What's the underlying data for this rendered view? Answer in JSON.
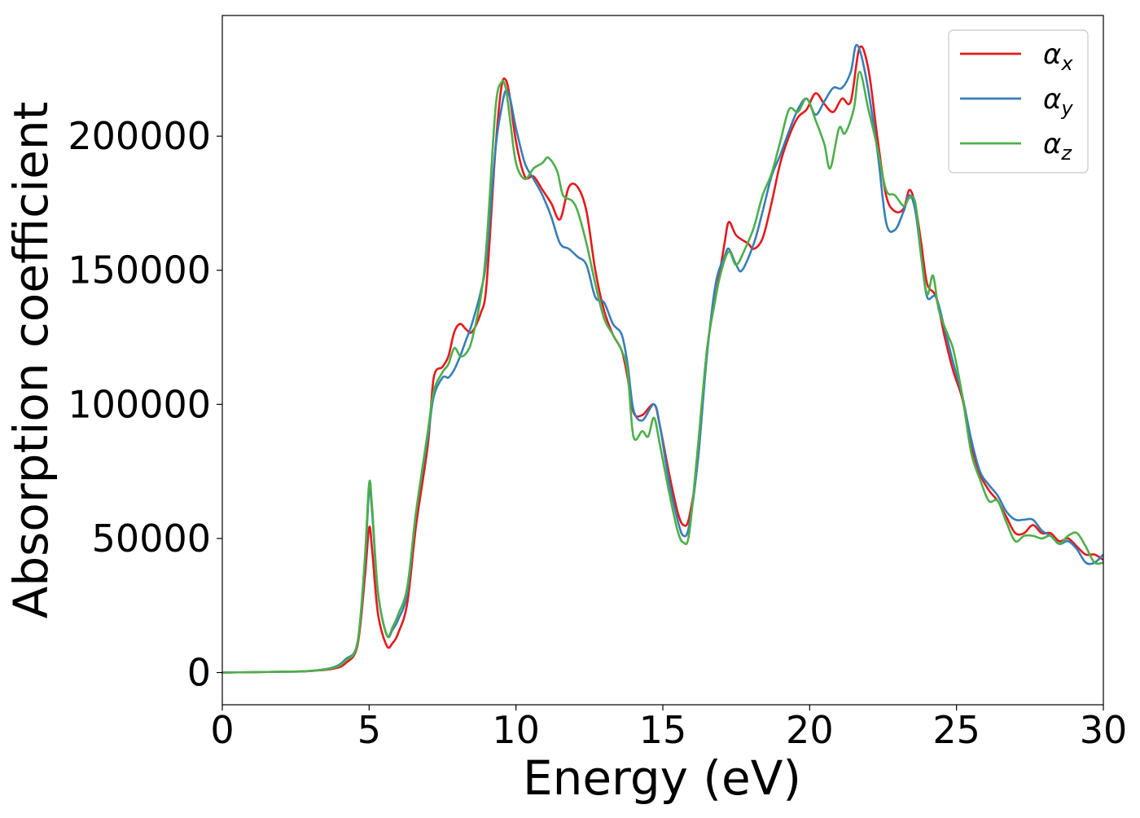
{
  "chart_data": {
    "type": "line",
    "title": "",
    "xlabel": "Energy (eV)",
    "ylabel": "Absorption coefficient",
    "xlim": [
      0,
      30
    ],
    "ylim": [
      -12000,
      245000
    ],
    "xticks": [
      0,
      5,
      10,
      15,
      20,
      25,
      30
    ],
    "xtick_labels": [
      "0",
      "5",
      "10",
      "15",
      "20",
      "25",
      "30"
    ],
    "yticks": [
      0,
      50000,
      100000,
      150000,
      200000
    ],
    "ytick_labels": [
      "0",
      "50000",
      "100000",
      "150000",
      "200000"
    ],
    "grid": false,
    "legend_position": "top-right",
    "series": [
      {
        "name": "αx",
        "legend_symbol": "α",
        "legend_subscript": "x",
        "color": "#e41a1c",
        "points": [
          [
            0,
            0
          ],
          [
            2,
            300
          ],
          [
            3,
            600
          ],
          [
            3.8,
            1500
          ],
          [
            4.2,
            3500
          ],
          [
            4.6,
            10000
          ],
          [
            4.85,
            35000
          ],
          [
            5.0,
            54000
          ],
          [
            5.1,
            46000
          ],
          [
            5.3,
            22000
          ],
          [
            5.6,
            10000
          ],
          [
            5.8,
            11000
          ],
          [
            6.0,
            15000
          ],
          [
            6.3,
            26000
          ],
          [
            6.6,
            55000
          ],
          [
            7.0,
            85000
          ],
          [
            7.2,
            110000
          ],
          [
            7.5,
            114000
          ],
          [
            7.7,
            118000
          ],
          [
            7.9,
            127000
          ],
          [
            8.1,
            130000
          ],
          [
            8.3,
            128000
          ],
          [
            8.5,
            127000
          ],
          [
            8.8,
            134000
          ],
          [
            9.0,
            145000
          ],
          [
            9.3,
            195000
          ],
          [
            9.5,
            218000
          ],
          [
            9.65,
            221000
          ],
          [
            9.8,
            214000
          ],
          [
            10.0,
            198000
          ],
          [
            10.3,
            185000
          ],
          [
            10.6,
            185000
          ],
          [
            10.9,
            180000
          ],
          [
            11.2,
            175000
          ],
          [
            11.5,
            169000
          ],
          [
            11.8,
            181000
          ],
          [
            12.1,
            181000
          ],
          [
            12.4,
            172000
          ],
          [
            12.7,
            150000
          ],
          [
            13.0,
            135000
          ],
          [
            13.3,
            126000
          ],
          [
            13.6,
            120000
          ],
          [
            13.8,
            110000
          ],
          [
            14.0,
            97000
          ],
          [
            14.3,
            96000
          ],
          [
            14.7,
            100000
          ],
          [
            14.9,
            92000
          ],
          [
            15.2,
            75000
          ],
          [
            15.5,
            60000
          ],
          [
            15.7,
            55000
          ],
          [
            15.9,
            58000
          ],
          [
            16.2,
            80000
          ],
          [
            16.5,
            120000
          ],
          [
            16.8,
            140000
          ],
          [
            17.1,
            160000
          ],
          [
            17.25,
            168000
          ],
          [
            17.5,
            163000
          ],
          [
            17.9,
            160000
          ],
          [
            18.1,
            158000
          ],
          [
            18.4,
            162000
          ],
          [
            18.7,
            175000
          ],
          [
            19.0,
            190000
          ],
          [
            19.3,
            200000
          ],
          [
            19.6,
            207000
          ],
          [
            19.9,
            210000
          ],
          [
            20.2,
            216000
          ],
          [
            20.5,
            212000
          ],
          [
            20.8,
            209000
          ],
          [
            21.1,
            214000
          ],
          [
            21.4,
            213000
          ],
          [
            21.7,
            233000
          ],
          [
            22.0,
            225000
          ],
          [
            22.3,
            200000
          ],
          [
            22.6,
            178000
          ],
          [
            22.9,
            172000
          ],
          [
            23.2,
            173000
          ],
          [
            23.4,
            180000
          ],
          [
            23.6,
            174000
          ],
          [
            23.8,
            160000
          ],
          [
            24.0,
            145000
          ],
          [
            24.3,
            140000
          ],
          [
            24.6,
            125000
          ],
          [
            24.9,
            112000
          ],
          [
            25.2,
            102000
          ],
          [
            25.5,
            85000
          ],
          [
            25.8,
            74000
          ],
          [
            26.1,
            68000
          ],
          [
            26.4,
            64000
          ],
          [
            26.7,
            58000
          ],
          [
            27.0,
            52000
          ],
          [
            27.3,
            52000
          ],
          [
            27.6,
            55000
          ],
          [
            27.9,
            52000
          ],
          [
            28.2,
            52000
          ],
          [
            28.5,
            49000
          ],
          [
            28.8,
            50000
          ],
          [
            29.1,
            47000
          ],
          [
            29.4,
            44000
          ],
          [
            29.7,
            44000
          ],
          [
            30.0,
            42000
          ]
        ]
      },
      {
        "name": "αy",
        "legend_symbol": "α",
        "legend_subscript": "y",
        "color": "#377eb8",
        "points": [
          [
            0,
            0
          ],
          [
            2,
            300
          ],
          [
            3,
            600
          ],
          [
            3.8,
            2000
          ],
          [
            4.2,
            5000
          ],
          [
            4.6,
            11000
          ],
          [
            4.85,
            40000
          ],
          [
            5.0,
            68000
          ],
          [
            5.1,
            60000
          ],
          [
            5.3,
            30000
          ],
          [
            5.6,
            14000
          ],
          [
            5.8,
            16000
          ],
          [
            6.0,
            20000
          ],
          [
            6.3,
            30000
          ],
          [
            6.6,
            60000
          ],
          [
            7.0,
            88000
          ],
          [
            7.2,
            103000
          ],
          [
            7.5,
            110000
          ],
          [
            7.7,
            110000
          ],
          [
            7.9,
            113000
          ],
          [
            8.1,
            118000
          ],
          [
            8.3,
            124000
          ],
          [
            8.5,
            130000
          ],
          [
            8.8,
            142000
          ],
          [
            9.0,
            155000
          ],
          [
            9.3,
            195000
          ],
          [
            9.5,
            210000
          ],
          [
            9.65,
            217000
          ],
          [
            9.8,
            214000
          ],
          [
            10.0,
            203000
          ],
          [
            10.3,
            190000
          ],
          [
            10.6,
            184000
          ],
          [
            10.9,
            178000
          ],
          [
            11.2,
            170000
          ],
          [
            11.5,
            160000
          ],
          [
            11.8,
            158000
          ],
          [
            12.1,
            155000
          ],
          [
            12.4,
            152000
          ],
          [
            12.7,
            140000
          ],
          [
            13.0,
            138000
          ],
          [
            13.3,
            130000
          ],
          [
            13.6,
            126000
          ],
          [
            13.8,
            115000
          ],
          [
            14.0,
            98000
          ],
          [
            14.3,
            94000
          ],
          [
            14.7,
            100000
          ],
          [
            14.9,
            92000
          ],
          [
            15.2,
            72000
          ],
          [
            15.5,
            57000
          ],
          [
            15.7,
            51000
          ],
          [
            15.9,
            55000
          ],
          [
            16.2,
            80000
          ],
          [
            16.5,
            118000
          ],
          [
            16.8,
            145000
          ],
          [
            17.1,
            155000
          ],
          [
            17.25,
            158000
          ],
          [
            17.5,
            152000
          ],
          [
            17.7,
            150000
          ],
          [
            18.1,
            160000
          ],
          [
            18.4,
            172000
          ],
          [
            18.7,
            185000
          ],
          [
            19.0,
            193000
          ],
          [
            19.3,
            202000
          ],
          [
            19.6,
            210000
          ],
          [
            19.9,
            214000
          ],
          [
            20.2,
            208000
          ],
          [
            20.5,
            213000
          ],
          [
            20.8,
            218000
          ],
          [
            21.1,
            218000
          ],
          [
            21.4,
            224000
          ],
          [
            21.6,
            234000
          ],
          [
            21.9,
            223000
          ],
          [
            22.3,
            195000
          ],
          [
            22.6,
            168000
          ],
          [
            22.9,
            165000
          ],
          [
            23.2,
            172000
          ],
          [
            23.4,
            178000
          ],
          [
            23.6,
            172000
          ],
          [
            23.8,
            155000
          ],
          [
            24.0,
            140000
          ],
          [
            24.3,
            140000
          ],
          [
            24.6,
            128000
          ],
          [
            24.9,
            115000
          ],
          [
            25.2,
            103000
          ],
          [
            25.5,
            87000
          ],
          [
            25.8,
            75000
          ],
          [
            26.1,
            70000
          ],
          [
            26.4,
            66000
          ],
          [
            26.7,
            60000
          ],
          [
            27.0,
            57000
          ],
          [
            27.3,
            57000
          ],
          [
            27.6,
            57000
          ],
          [
            27.9,
            53000
          ],
          [
            28.2,
            51000
          ],
          [
            28.5,
            48000
          ],
          [
            28.8,
            49000
          ],
          [
            29.1,
            46000
          ],
          [
            29.4,
            41000
          ],
          [
            29.7,
            41000
          ],
          [
            30.0,
            44000
          ]
        ]
      },
      {
        "name": "αz",
        "legend_symbol": "α",
        "legend_subscript": "z",
        "color": "#4daf4a",
        "points": [
          [
            0,
            0
          ],
          [
            2,
            300
          ],
          [
            3,
            600
          ],
          [
            3.8,
            1800
          ],
          [
            4.2,
            4500
          ],
          [
            4.6,
            11000
          ],
          [
            4.85,
            42000
          ],
          [
            5.0,
            70500
          ],
          [
            5.1,
            62000
          ],
          [
            5.3,
            30000
          ],
          [
            5.6,
            14000
          ],
          [
            5.8,
            17000
          ],
          [
            6.0,
            22000
          ],
          [
            6.3,
            32000
          ],
          [
            6.6,
            60000
          ],
          [
            7.0,
            90000
          ],
          [
            7.2,
            105000
          ],
          [
            7.5,
            112000
          ],
          [
            7.7,
            115000
          ],
          [
            7.9,
            121000
          ],
          [
            8.1,
            118000
          ],
          [
            8.3,
            119000
          ],
          [
            8.5,
            124000
          ],
          [
            8.8,
            140000
          ],
          [
            9.0,
            160000
          ],
          [
            9.3,
            210000
          ],
          [
            9.5,
            220000
          ],
          [
            9.65,
            218000
          ],
          [
            9.8,
            206000
          ],
          [
            10.0,
            190000
          ],
          [
            10.3,
            184000
          ],
          [
            10.6,
            188000
          ],
          [
            10.9,
            190000
          ],
          [
            11.1,
            192000
          ],
          [
            11.4,
            187000
          ],
          [
            11.6,
            178000
          ],
          [
            11.9,
            176000
          ],
          [
            12.1,
            172000
          ],
          [
            12.4,
            160000
          ],
          [
            12.7,
            145000
          ],
          [
            13.0,
            132000
          ],
          [
            13.3,
            126000
          ],
          [
            13.6,
            120000
          ],
          [
            13.8,
            112000
          ],
          [
            14.0,
            88000
          ],
          [
            14.3,
            90000
          ],
          [
            14.5,
            88000
          ],
          [
            14.7,
            95000
          ],
          [
            14.9,
            85000
          ],
          [
            15.2,
            68000
          ],
          [
            15.5,
            53000
          ],
          [
            15.7,
            48500
          ],
          [
            15.9,
            52000
          ],
          [
            16.2,
            85000
          ],
          [
            16.5,
            120000
          ],
          [
            16.8,
            140000
          ],
          [
            17.0,
            150000
          ],
          [
            17.25,
            157000
          ],
          [
            17.5,
            152000
          ],
          [
            17.8,
            158000
          ],
          [
            18.1,
            166000
          ],
          [
            18.4,
            178000
          ],
          [
            18.7,
            186000
          ],
          [
            19.0,
            198000
          ],
          [
            19.3,
            210000
          ],
          [
            19.6,
            209000
          ],
          [
            19.9,
            214000
          ],
          [
            20.2,
            206000
          ],
          [
            20.5,
            197000
          ],
          [
            20.7,
            188000
          ],
          [
            21.0,
            203000
          ],
          [
            21.2,
            201000
          ],
          [
            21.5,
            210000
          ],
          [
            21.7,
            224000
          ],
          [
            22.0,
            210000
          ],
          [
            22.3,
            196000
          ],
          [
            22.6,
            180000
          ],
          [
            22.9,
            178000
          ],
          [
            23.2,
            174000
          ],
          [
            23.4,
            177000
          ],
          [
            23.6,
            175000
          ],
          [
            23.8,
            155000
          ],
          [
            24.0,
            141000
          ],
          [
            24.2,
            148000
          ],
          [
            24.4,
            135000
          ],
          [
            24.7,
            126000
          ],
          [
            24.9,
            120000
          ],
          [
            25.2,
            103000
          ],
          [
            25.5,
            82000
          ],
          [
            25.8,
            72000
          ],
          [
            26.1,
            64000
          ],
          [
            26.4,
            64000
          ],
          [
            26.7,
            56000
          ],
          [
            27.0,
            49000
          ],
          [
            27.3,
            51000
          ],
          [
            27.6,
            51000
          ],
          [
            27.9,
            50000
          ],
          [
            28.2,
            51000
          ],
          [
            28.5,
            48000
          ],
          [
            28.8,
            51000
          ],
          [
            29.1,
            52000
          ],
          [
            29.4,
            47000
          ],
          [
            29.7,
            41000
          ],
          [
            30.0,
            41000
          ]
        ]
      }
    ]
  }
}
